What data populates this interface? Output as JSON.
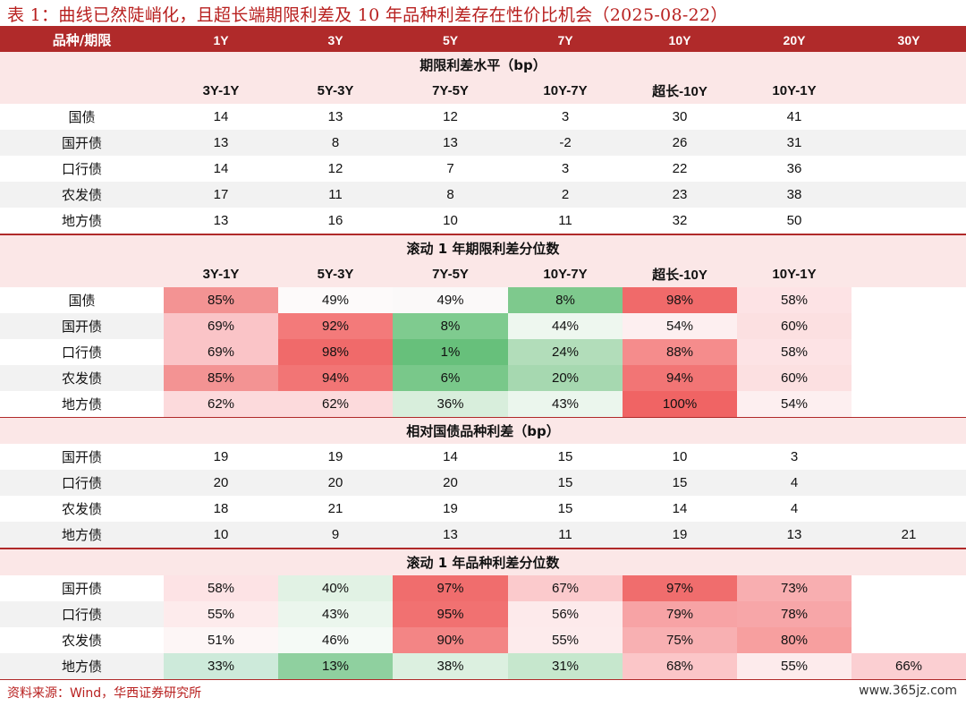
{
  "title": "表 1：曲线已然陡峭化，且超长端期限利差及 10 年品种利差存在性价比机会（2025-08-22）",
  "header": [
    "品种/期限",
    "1Y",
    "3Y",
    "5Y",
    "7Y",
    "10Y",
    "20Y",
    "30Y"
  ],
  "sections": [
    {
      "title": "期限利差水平（bp）",
      "subheader": [
        "3Y-1Y",
        "5Y-3Y",
        "7Y-5Y",
        "10Y-7Y",
        "超长-10Y",
        "10Y-1Y",
        ""
      ],
      "rows": [
        {
          "label": "国债",
          "values": [
            "14",
            "13",
            "12",
            "3",
            "30",
            "41",
            ""
          ]
        },
        {
          "label": "国开债",
          "values": [
            "13",
            "8",
            "13",
            "-2",
            "26",
            "31",
            ""
          ]
        },
        {
          "label": "口行债",
          "values": [
            "14",
            "12",
            "7",
            "3",
            "22",
            "36",
            ""
          ]
        },
        {
          "label": "农发债",
          "values": [
            "17",
            "11",
            "8",
            "2",
            "23",
            "38",
            ""
          ]
        },
        {
          "label": "地方债",
          "values": [
            "13",
            "16",
            "10",
            "11",
            "32",
            "50",
            ""
          ]
        }
      ]
    },
    {
      "title": "滚动 1 年期限利差分位数",
      "subheader": [
        "3Y-1Y",
        "5Y-3Y",
        "7Y-5Y",
        "10Y-7Y",
        "超长-10Y",
        "10Y-1Y",
        ""
      ],
      "rows": [
        {
          "label": "国债",
          "values": [
            "85%",
            "49%",
            "49%",
            "8%",
            "98%",
            "58%",
            ""
          ],
          "colors": [
            "#f39393",
            "#fdfafa",
            "#fbf9f9",
            "#7ec98d",
            "#f06a6a",
            "#fde3e5",
            "#ffffff"
          ]
        },
        {
          "label": "国开债",
          "values": [
            "69%",
            "92%",
            "8%",
            "44%",
            "54%",
            "60%",
            ""
          ],
          "colors": [
            "#fac4c7",
            "#f37a7a",
            "#7fcb8f",
            "#eef7ef",
            "#fdeff0",
            "#fce0e1",
            "#ffffff"
          ]
        },
        {
          "label": "口行债",
          "values": [
            "69%",
            "98%",
            "1%",
            "24%",
            "88%",
            "58%",
            ""
          ],
          "colors": [
            "#fac4c7",
            "#f06a6a",
            "#67c07b",
            "#b2ddba",
            "#f58c8c",
            "#fde3e5",
            "#ffffff"
          ]
        },
        {
          "label": "农发债",
          "values": [
            "85%",
            "94%",
            "6%",
            "20%",
            "94%",
            "60%",
            ""
          ],
          "colors": [
            "#f39393",
            "#f27575",
            "#79c88a",
            "#a6d8b0",
            "#f27575",
            "#fce0e1",
            "#ffffff"
          ]
        },
        {
          "label": "地方债",
          "values": [
            "62%",
            "62%",
            "36%",
            "43%",
            "100%",
            "54%",
            ""
          ],
          "colors": [
            "#fcdadc",
            "#fcdadc",
            "#d8eedc",
            "#ebf6ed",
            "#f06464",
            "#fdeff0",
            "#ffffff"
          ]
        }
      ]
    },
    {
      "title": "相对国债品种利差（bp）",
      "rows": [
        {
          "label": "国开债",
          "values": [
            "19",
            "19",
            "14",
            "15",
            "10",
            "3",
            ""
          ]
        },
        {
          "label": "口行债",
          "values": [
            "20",
            "20",
            "20",
            "15",
            "15",
            "4",
            ""
          ]
        },
        {
          "label": "农发债",
          "values": [
            "18",
            "21",
            "19",
            "15",
            "14",
            "4",
            ""
          ]
        },
        {
          "label": "地方债",
          "values": [
            "10",
            "9",
            "13",
            "11",
            "19",
            "13",
            "21"
          ]
        }
      ]
    },
    {
      "title": "滚动 1 年品种利差分位数",
      "rows": [
        {
          "label": "国开债",
          "values": [
            "58%",
            "40%",
            "97%",
            "67%",
            "97%",
            "73%",
            ""
          ],
          "colors": [
            "#fde3e5",
            "#e1f2e4",
            "#f06d6d",
            "#fbcacc",
            "#f06d6d",
            "#f8aeb0",
            "#ffffff"
          ]
        },
        {
          "label": "口行债",
          "values": [
            "55%",
            "43%",
            "95%",
            "56%",
            "79%",
            "78%",
            ""
          ],
          "colors": [
            "#fdebec",
            "#ebf6ed",
            "#f17171",
            "#fdeaeb",
            "#f7a3a5",
            "#f7a6a8",
            "#ffffff"
          ]
        },
        {
          "label": "农发债",
          "values": [
            "51%",
            "46%",
            "90%",
            "55%",
            "75%",
            "80%",
            ""
          ],
          "colors": [
            "#fdf6f6",
            "#f5faf6",
            "#f38585",
            "#fdebec",
            "#f8b0b2",
            "#f79f9f",
            "#ffffff"
          ]
        },
        {
          "label": "地方债",
          "values": [
            "33%",
            "13%",
            "38%",
            "31%",
            "68%",
            "55%",
            "66%"
          ],
          "colors": [
            "#cdeada",
            "#8fd09f",
            "#dcf0e0",
            "#c6e7cd",
            "#fbc6c8",
            "#fdebec",
            "#fbcfd2"
          ]
        }
      ]
    }
  ],
  "footer": "资料来源：Wind，华西证券研究所",
  "watermark": "www.365jz.com"
}
